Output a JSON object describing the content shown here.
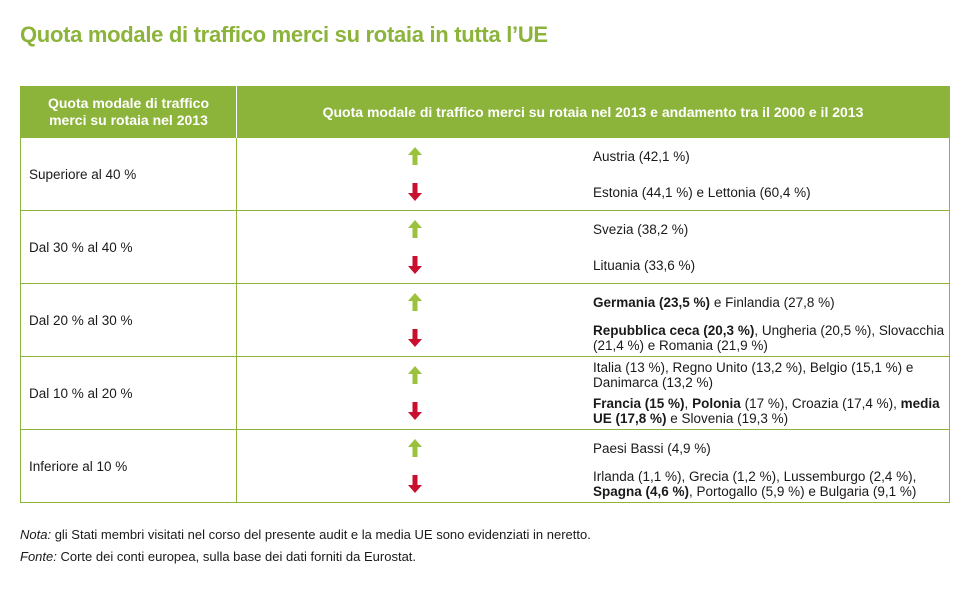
{
  "title": "Quota modale di traffico merci su rotaia in tutta l’UE",
  "header": {
    "col1_line1": "Quota modale di traffico",
    "col1_line2": "merci su rotaia nel 2013",
    "col2": "Quota modale di traffico merci su rotaia nel 2013 e andamento tra il 2000 e il 2013"
  },
  "colors": {
    "accent": "#8cb33a",
    "up_arrow": "#9ac23c",
    "down_arrow": "#c8102e"
  },
  "rows": [
    {
      "category": "Superiore al 40 %",
      "up": [
        {
          "t": "Austria (42,1 %)",
          "b": false
        }
      ],
      "down": [
        {
          "t": "Estonia (44,1 %) e Lettonia (60,4 %)",
          "b": false
        }
      ]
    },
    {
      "category": "Dal 30 % al 40 %",
      "up": [
        {
          "t": "Svezia (38,2 %)",
          "b": false
        }
      ],
      "down": [
        {
          "t": "Lituania (33,6 %)",
          "b": false
        }
      ]
    },
    {
      "category": "Dal 20 % al 30 %",
      "up": [
        {
          "t": "Germania (23,5 %)",
          "b": true
        },
        {
          "t": " e Finlandia (27,8 %)",
          "b": false
        }
      ],
      "down": [
        {
          "t": "Repubblica ceca (20,3 %)",
          "b": true
        },
        {
          "t": ", Ungheria (20,5 %), Slovacchia (21,4 %) e Romania (21,9 %)",
          "b": false
        }
      ]
    },
    {
      "category": "Dal 10 % al 20 %",
      "up": [
        {
          "t": "Italia (13 %), Regno Unito (13,2 %), Belgio (15,1 %) e Danimarca (13,2 %)",
          "b": false
        }
      ],
      "down": [
        {
          "t": "Francia (15 %)",
          "b": true
        },
        {
          "t": ", ",
          "b": false
        },
        {
          "t": "Polonia",
          "b": true
        },
        {
          "t": " (17 %), Croazia (17,4 %), ",
          "b": false
        },
        {
          "t": "media UE (17,8 %)",
          "b": true
        },
        {
          "t": " e Slovenia (19,3 %)",
          "b": false
        }
      ]
    },
    {
      "category": "Inferiore al 10 %",
      "up": [
        {
          "t": "Paesi Bassi (4,9 %)",
          "b": false
        }
      ],
      "down": [
        {
          "t": "Irlanda (1,1 %), Grecia (1,2 %), Lussemburgo (2,4 %), ",
          "b": false
        },
        {
          "t": "Spagna (4,6 %)",
          "b": true
        },
        {
          "t": ", Portogallo (5,9 %) e Bulgaria (9,1 %)",
          "b": false
        }
      ]
    }
  ],
  "notes": {
    "note_label": "Nota:",
    "note_text": " gli Stati membri visitati nel corso del presente audit e la media UE sono evidenziati in neretto.",
    "source_label": "Fonte:",
    "source_text": " Corte dei conti europea, sulla base dei dati forniti da Eurostat."
  }
}
